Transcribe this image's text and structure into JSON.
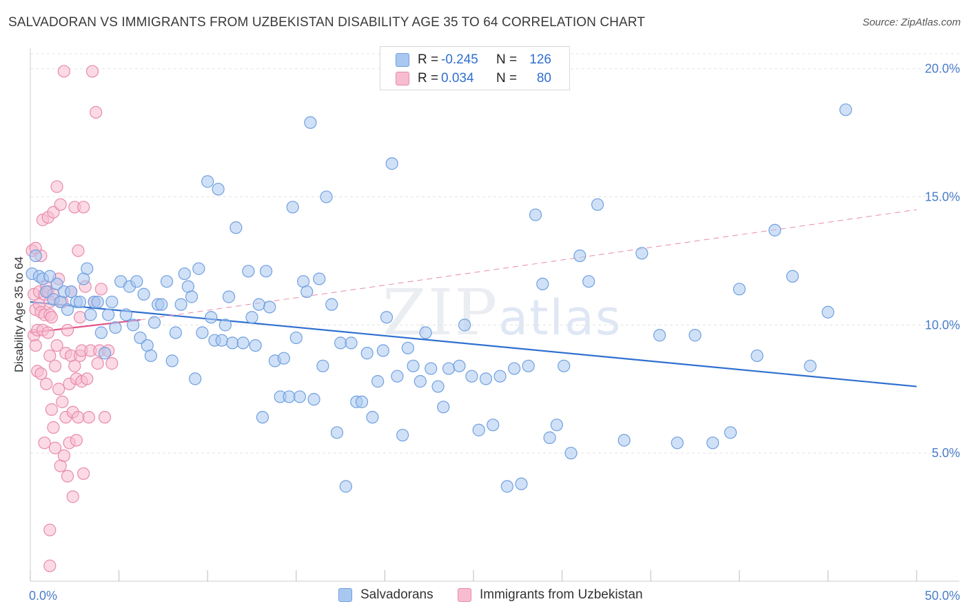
{
  "title": "SALVADORAN VS IMMIGRANTS FROM UZBEKISTAN DISABILITY AGE 35 TO 64 CORRELATION CHART",
  "source": "Source: ZipAtlas.com",
  "watermark": {
    "zip": "ZIP",
    "atlas": "atlas"
  },
  "legend": {
    "rows": [
      {
        "r_label": "R =",
        "r_value": "-0.245",
        "n_label": "N =",
        "n_value": "126",
        "color": "#a9c8f0",
        "border": "#6f9fdf"
      },
      {
        "r_label": "R =",
        "r_value": "0.034",
        "n_label": "N =",
        "n_value": "80",
        "color": "#f7bcd0",
        "border": "#e88aaa"
      }
    ]
  },
  "bottom_legend": {
    "series1": "Salvadorans",
    "series2": "Immigrants from Uzbekistan"
  },
  "chart_data": {
    "type": "scatter",
    "title": "SALVADORAN VS IMMIGRANTS FROM UZBEKISTAN DISABILITY AGE 35 TO 64 CORRELATION CHART",
    "xlabel": "",
    "ylabel": "Disability Age 35 to 64",
    "xlim": [
      0,
      50
    ],
    "ylim": [
      0,
      20.8
    ],
    "x_tick_labels": {
      "min": "0.0%",
      "max": "50.0%"
    },
    "y_ticks": [
      {
        "value": 5,
        "label": "5.0%"
      },
      {
        "value": 10,
        "label": "10.0%"
      },
      {
        "value": 15,
        "label": "15.0%"
      },
      {
        "value": 20,
        "label": "20.0%"
      }
    ],
    "series": [
      {
        "name": "Salvadorans",
        "color": "#a9c8f0",
        "stroke": "#6f9fdf",
        "trend": {
          "x0": 0,
          "y0": 10.9,
          "x1": 50,
          "y1": 7.6,
          "color": "#2f6fd0"
        },
        "points": [
          [
            0.1,
            12.0
          ],
          [
            0.3,
            12.7
          ],
          [
            0.5,
            11.9
          ],
          [
            0.7,
            11.8
          ],
          [
            0.9,
            11.3
          ],
          [
            1.1,
            11.9
          ],
          [
            1.3,
            11.0
          ],
          [
            1.5,
            11.6
          ],
          [
            1.7,
            10.9
          ],
          [
            1.9,
            11.3
          ],
          [
            2.1,
            10.6
          ],
          [
            2.3,
            11.3
          ],
          [
            2.6,
            10.9
          ],
          [
            2.8,
            10.9
          ],
          [
            3.0,
            11.8
          ],
          [
            3.2,
            12.2
          ],
          [
            3.4,
            10.4
          ],
          [
            3.6,
            10.9
          ],
          [
            3.8,
            10.9
          ],
          [
            4.0,
            9.7
          ],
          [
            4.2,
            8.9
          ],
          [
            4.4,
            10.4
          ],
          [
            4.6,
            10.9
          ],
          [
            4.8,
            9.9
          ],
          [
            5.1,
            11.7
          ],
          [
            5.4,
            10.4
          ],
          [
            5.6,
            11.5
          ],
          [
            5.8,
            10.0
          ],
          [
            6.0,
            11.7
          ],
          [
            6.2,
            9.5
          ],
          [
            6.4,
            11.2
          ],
          [
            6.6,
            9.2
          ],
          [
            6.8,
            8.8
          ],
          [
            7.0,
            10.1
          ],
          [
            7.2,
            10.8
          ],
          [
            7.4,
            10.8
          ],
          [
            7.7,
            11.7
          ],
          [
            8.0,
            8.6
          ],
          [
            8.2,
            9.7
          ],
          [
            8.5,
            10.8
          ],
          [
            8.7,
            12.0
          ],
          [
            8.9,
            11.5
          ],
          [
            9.1,
            11.1
          ],
          [
            9.3,
            7.9
          ],
          [
            9.5,
            12.2
          ],
          [
            9.7,
            9.7
          ],
          [
            10.0,
            15.6
          ],
          [
            10.2,
            10.3
          ],
          [
            10.4,
            9.4
          ],
          [
            10.6,
            15.3
          ],
          [
            10.8,
            9.4
          ],
          [
            11.0,
            10.0
          ],
          [
            11.2,
            11.1
          ],
          [
            11.4,
            9.3
          ],
          [
            11.6,
            13.8
          ],
          [
            12.0,
            9.3
          ],
          [
            12.3,
            12.1
          ],
          [
            12.5,
            10.3
          ],
          [
            12.7,
            9.2
          ],
          [
            12.9,
            10.8
          ],
          [
            13.1,
            6.4
          ],
          [
            13.3,
            12.1
          ],
          [
            13.5,
            10.7
          ],
          [
            13.8,
            8.6
          ],
          [
            14.1,
            7.2
          ],
          [
            14.3,
            8.7
          ],
          [
            14.6,
            7.2
          ],
          [
            14.8,
            14.6
          ],
          [
            15.0,
            9.5
          ],
          [
            15.2,
            7.2
          ],
          [
            15.4,
            11.7
          ],
          [
            15.6,
            11.3
          ],
          [
            15.8,
            17.9
          ],
          [
            16.0,
            7.1
          ],
          [
            16.3,
            11.8
          ],
          [
            16.5,
            8.4
          ],
          [
            16.7,
            15.0
          ],
          [
            17.0,
            10.8
          ],
          [
            17.3,
            5.8
          ],
          [
            17.5,
            9.3
          ],
          [
            17.8,
            3.7
          ],
          [
            18.1,
            9.3
          ],
          [
            18.4,
            7.0
          ],
          [
            18.7,
            7.0
          ],
          [
            19.0,
            8.9
          ],
          [
            19.3,
            6.4
          ],
          [
            19.6,
            7.8
          ],
          [
            19.9,
            9.0
          ],
          [
            20.1,
            10.3
          ],
          [
            20.4,
            16.3
          ],
          [
            20.7,
            8.0
          ],
          [
            21.0,
            5.7
          ],
          [
            21.3,
            9.1
          ],
          [
            21.6,
            8.4
          ],
          [
            22.0,
            7.8
          ],
          [
            22.3,
            9.7
          ],
          [
            22.6,
            8.3
          ],
          [
            23.0,
            7.6
          ],
          [
            23.3,
            6.8
          ],
          [
            23.6,
            8.3
          ],
          [
            24.2,
            8.4
          ],
          [
            24.5,
            10.0
          ],
          [
            24.9,
            8.0
          ],
          [
            25.3,
            5.9
          ],
          [
            25.7,
            7.9
          ],
          [
            26.1,
            6.1
          ],
          [
            26.5,
            8.0
          ],
          [
            26.9,
            3.7
          ],
          [
            27.3,
            8.3
          ],
          [
            27.7,
            3.8
          ],
          [
            28.1,
            8.4
          ],
          [
            28.5,
            14.3
          ],
          [
            28.9,
            11.6
          ],
          [
            29.3,
            5.6
          ],
          [
            29.7,
            6.1
          ],
          [
            30.1,
            8.4
          ],
          [
            30.5,
            5.0
          ],
          [
            31.0,
            12.7
          ],
          [
            31.5,
            11.7
          ],
          [
            32.0,
            14.7
          ],
          [
            33.5,
            5.5
          ],
          [
            34.5,
            12.8
          ],
          [
            35.5,
            9.6
          ],
          [
            36.5,
            5.4
          ],
          [
            37.5,
            9.6
          ],
          [
            38.5,
            5.4
          ],
          [
            39.5,
            5.8
          ],
          [
            40.0,
            11.4
          ],
          [
            41.0,
            8.8
          ],
          [
            42.0,
            13.7
          ],
          [
            43.0,
            11.9
          ],
          [
            44.0,
            8.4
          ],
          [
            45.0,
            10.5
          ],
          [
            46.0,
            18.4
          ]
        ]
      },
      {
        "name": "Immigrants from Uzbekistan",
        "color": "#f7bcd0",
        "stroke": "#e88aaa",
        "trend": {
          "x0": 0,
          "y0": 9.7,
          "x1": 6.2,
          "y1": 10.2,
          "color": "#e0558a",
          "dashed_ext": {
            "x1": 50,
            "y1": 14.5
          }
        },
        "points": [
          [
            0.1,
            12.9
          ],
          [
            0.2,
            9.6
          ],
          [
            0.2,
            11.2
          ],
          [
            0.3,
            9.2
          ],
          [
            0.3,
            10.6
          ],
          [
            0.4,
            8.2
          ],
          [
            0.4,
            9.8
          ],
          [
            0.5,
            10.8
          ],
          [
            0.5,
            11.3
          ],
          [
            0.6,
            8.1
          ],
          [
            0.6,
            10.5
          ],
          [
            0.6,
            12.7
          ],
          [
            0.7,
            14.1
          ],
          [
            0.7,
            9.8
          ],
          [
            0.8,
            11.2
          ],
          [
            0.8,
            10.4
          ],
          [
            0.9,
            11.5
          ],
          [
            0.9,
            7.7
          ],
          [
            1.0,
            14.2
          ],
          [
            1.0,
            9.7
          ],
          [
            1.0,
            11.3
          ],
          [
            1.1,
            10.4
          ],
          [
            1.1,
            8.8
          ],
          [
            1.2,
            6.7
          ],
          [
            1.2,
            10.3
          ],
          [
            1.3,
            14.4
          ],
          [
            1.3,
            11.2
          ],
          [
            1.3,
            6.0
          ],
          [
            1.4,
            8.4
          ],
          [
            1.4,
            5.2
          ],
          [
            1.5,
            15.4
          ],
          [
            1.5,
            9.2
          ],
          [
            1.6,
            11.8
          ],
          [
            1.6,
            7.5
          ],
          [
            1.7,
            14.7
          ],
          [
            1.7,
            4.5
          ],
          [
            1.8,
            10.9
          ],
          [
            1.8,
            7.0
          ],
          [
            1.9,
            4.9
          ],
          [
            1.9,
            19.9
          ],
          [
            2.0,
            8.9
          ],
          [
            2.0,
            6.4
          ],
          [
            2.1,
            4.1
          ],
          [
            2.1,
            9.8
          ],
          [
            2.2,
            7.7
          ],
          [
            2.2,
            5.4
          ],
          [
            2.3,
            11.3
          ],
          [
            2.3,
            8.8
          ],
          [
            2.4,
            6.6
          ],
          [
            2.4,
            3.3
          ],
          [
            2.5,
            14.6
          ],
          [
            2.5,
            8.4
          ],
          [
            2.6,
            7.9
          ],
          [
            2.6,
            5.5
          ],
          [
            2.7,
            12.9
          ],
          [
            2.7,
            6.4
          ],
          [
            2.8,
            10.3
          ],
          [
            2.8,
            8.8
          ],
          [
            2.9,
            7.8
          ],
          [
            2.9,
            9.0
          ],
          [
            3.0,
            14.6
          ],
          [
            3.0,
            4.2
          ],
          [
            3.1,
            11.5
          ],
          [
            3.2,
            7.9
          ],
          [
            3.3,
            6.4
          ],
          [
            3.4,
            9.0
          ],
          [
            3.5,
            19.9
          ],
          [
            3.6,
            10.9
          ],
          [
            3.7,
            18.3
          ],
          [
            3.8,
            8.5
          ],
          [
            3.9,
            9.0
          ],
          [
            4.0,
            11.4
          ],
          [
            4.2,
            6.4
          ],
          [
            4.4,
            9.0
          ],
          [
            4.6,
            8.5
          ],
          [
            0.3,
            13.0
          ],
          [
            1.1,
            10.9
          ],
          [
            0.8,
            5.4
          ],
          [
            1.1,
            2.0
          ],
          [
            1.1,
            0.6
          ]
        ]
      }
    ]
  }
}
